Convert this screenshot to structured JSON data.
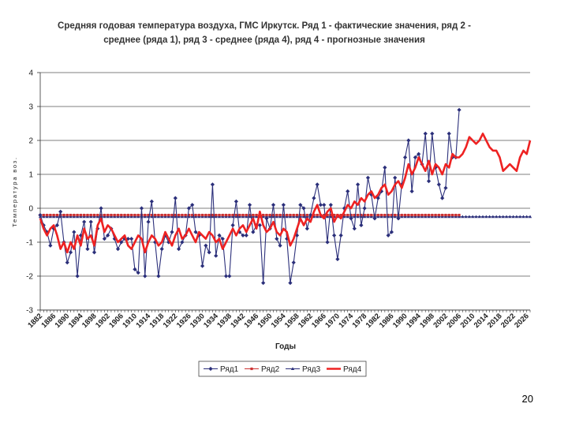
{
  "page_number": "20",
  "chart_data": {
    "type": "line",
    "title": [
      "Средняя годовая температура воздуха, ГМС Иркутск.   Ряд 1 - фактические значения, ряд 2 -",
      "среднее (ряда 1), ряд 3 - среднее (ряда 4), ряд 4 - прогнозные значения"
    ],
    "xlabel": "Годы",
    "ylabel": "Температура воз.",
    "ylim": [
      -3,
      4
    ],
    "yticks": [
      "-3",
      "-2",
      "-1",
      "0",
      "1",
      "2",
      "3",
      "4"
    ],
    "xlim": [
      1882,
      2027
    ],
    "xticks": [
      "1882",
      "1886",
      "1890",
      "1894",
      "1898",
      "1902",
      "1906",
      "1910",
      "1914",
      "1918",
      "1922",
      "1926",
      "1930",
      "1934",
      "1938",
      "1942",
      "1946",
      "1950",
      "1954",
      "1958",
      "1962",
      "1966",
      "1970",
      "1974",
      "1978",
      "1982",
      "1986",
      "1990",
      "1994",
      "1998",
      "2002",
      "2006",
      "2010",
      "2014",
      "2018",
      "2022",
      "2026"
    ],
    "grid": "horizontal",
    "legend_position": "bottom",
    "legend": [
      "Ряд1",
      "Ряд2",
      "Ряд3",
      "Ряд4"
    ],
    "series": [
      {
        "name": "Ряд1",
        "color": "#2b2f7a",
        "marker": "diamond",
        "x_start": 1882,
        "values": [
          -0.2,
          -0.5,
          -0.7,
          -1.1,
          -0.6,
          -0.5,
          -0.1,
          -1.0,
          -1.6,
          -1.3,
          -0.7,
          -2.0,
          -0.8,
          -0.4,
          -1.2,
          -0.4,
          -1.3,
          -0.6,
          0.0,
          -0.9,
          -0.8,
          -0.6,
          -0.9,
          -1.2,
          -1.0,
          -0.9,
          -0.9,
          -0.9,
          -1.8,
          -1.9,
          0.0,
          -2.0,
          -0.4,
          0.2,
          -1.0,
          -2.0,
          -1.2,
          -0.8,
          -1.0,
          -0.7,
          0.3,
          -1.2,
          -1.0,
          -0.8,
          0.0,
          0.1,
          -0.7,
          -0.8,
          -1.7,
          -1.1,
          -1.3,
          0.7,
          -1.4,
          -0.8,
          -0.9,
          -2.0,
          -2.0,
          -0.5,
          0.2,
          -0.7,
          -0.8,
          -0.8,
          0.1,
          -0.7,
          -0.5,
          -0.5,
          -2.2,
          -0.3,
          -0.6,
          0.1,
          -0.9,
          -1.1,
          0.1,
          -0.9,
          -2.2,
          -1.6,
          -0.8,
          0.1,
          0.0,
          -0.6,
          -0.2,
          0.3,
          0.7,
          0.1,
          0.1,
          -1.0,
          0.1,
          -0.8,
          -1.5,
          -0.8,
          0.0,
          0.5,
          -0.3,
          -0.6,
          0.7,
          -0.5,
          0.0,
          0.9,
          0.4,
          -0.3,
          0.3,
          0.5,
          1.2,
          -0.8,
          -0.7,
          0.9,
          -0.3,
          0.7,
          1.5,
          2.0,
          0.5,
          1.5,
          1.6,
          1.3,
          2.2,
          0.8,
          2.2,
          1.2,
          0.7,
          0.3,
          0.6,
          2.2,
          1.5,
          1.5,
          2.9
        ]
      },
      {
        "name": "Ряд2",
        "color": "#cc3333",
        "marker": "square",
        "x_start": 1882,
        "x_end": 2006,
        "constant": -0.2
      },
      {
        "name": "Ряд3",
        "color": "#2b2f7a",
        "marker": "triangle",
        "x_start": 1882,
        "x_end": 2027,
        "constant": -0.25
      },
      {
        "name": "Ряд4",
        "color": "#ee2222",
        "marker": "none",
        "x_start": 1882,
        "values": [
          -0.3,
          -0.6,
          -0.8,
          -0.6,
          -0.5,
          -0.8,
          -1.2,
          -1.0,
          -1.3,
          -1.0,
          -1.2,
          -0.8,
          -1.1,
          -0.6,
          -0.9,
          -0.8,
          -1.1,
          -0.5,
          -0.3,
          -0.7,
          -0.5,
          -0.6,
          -0.8,
          -1.0,
          -0.9,
          -0.8,
          -1.1,
          -1.2,
          -1.0,
          -0.8,
          -0.9,
          -1.3,
          -1.0,
          -0.8,
          -0.9,
          -1.1,
          -1.0,
          -0.7,
          -0.9,
          -1.1,
          -0.8,
          -0.6,
          -0.9,
          -0.8,
          -0.6,
          -0.8,
          -1.0,
          -0.7,
          -0.8,
          -0.9,
          -0.7,
          -0.8,
          -1.0,
          -0.9,
          -1.2,
          -1.0,
          -0.8,
          -0.6,
          -0.8,
          -0.6,
          -0.5,
          -0.7,
          -0.5,
          -0.3,
          -0.6,
          -0.1,
          -0.5,
          -0.7,
          -0.6,
          -0.4,
          -0.7,
          -0.8,
          -0.6,
          -0.7,
          -1.1,
          -0.9,
          -0.6,
          -0.3,
          -0.5,
          -0.3,
          -0.4,
          -0.1,
          0.1,
          -0.2,
          -0.3,
          -0.1,
          0.0,
          -0.4,
          -0.2,
          -0.3,
          -0.1,
          0.1,
          0.0,
          0.2,
          0.1,
          0.3,
          0.2,
          0.4,
          0.5,
          0.3,
          0.4,
          0.6,
          0.7,
          0.4,
          0.5,
          0.7,
          0.8,
          0.6,
          0.9,
          1.3,
          1.0,
          1.2,
          1.5,
          1.3,
          1.1,
          1.4,
          1.0,
          1.3,
          1.2,
          1.0,
          1.3,
          1.2,
          1.6,
          1.5,
          1.5,
          1.6,
          1.8,
          2.1,
          2.0,
          1.9,
          2.0,
          2.2,
          2.0,
          1.8,
          1.7,
          1.7,
          1.5,
          1.1,
          1.2,
          1.3,
          1.2,
          1.1,
          1.5,
          1.7,
          1.6,
          2.0
        ]
      }
    ]
  }
}
